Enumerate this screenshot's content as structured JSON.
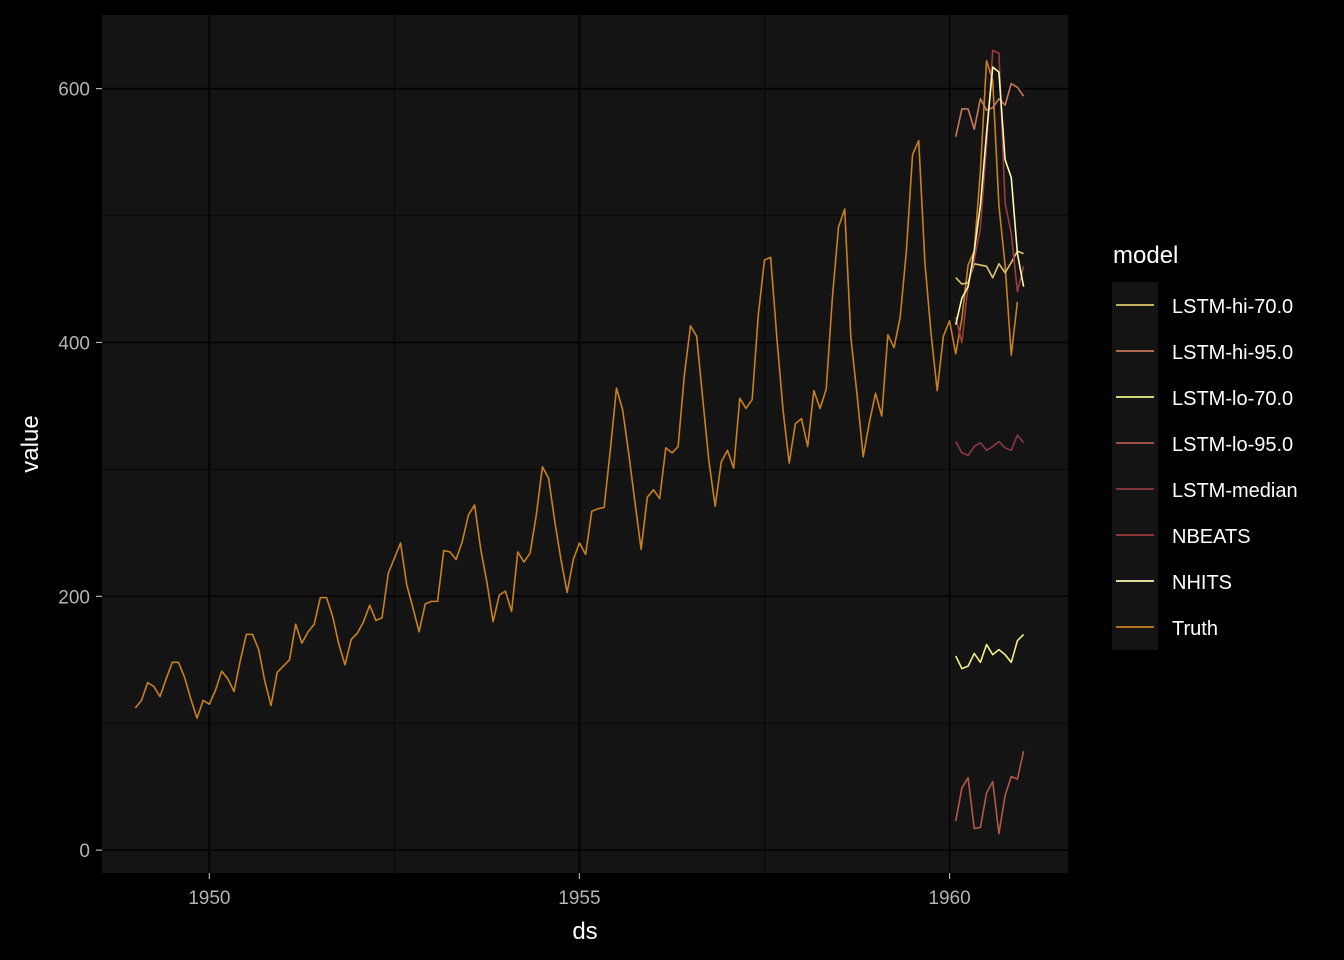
{
  "chart_data": {
    "type": "line",
    "xlabel": "ds",
    "ylabel": "value",
    "xlim": [
      1948.55,
      1961.6
    ],
    "ylim": [
      -18,
      658
    ],
    "x_ticks": [
      1950,
      1955,
      1960
    ],
    "x_tick_labels": [
      "1950",
      "1955",
      "1960"
    ],
    "y_ticks": [
      0,
      200,
      400,
      600
    ],
    "y_tick_labels": [
      "0",
      "200",
      "400",
      "600"
    ],
    "grid": true,
    "legend": {
      "title": "model",
      "placement": "right"
    },
    "series": [
      {
        "name": "LSTM-hi-70.0",
        "color": "#e0c46a",
        "x": [
          1960.0833,
          1960.1667,
          1960.25,
          1960.3333,
          1960.4167,
          1960.5,
          1960.5833,
          1960.6667,
          1960.75,
          1960.8333,
          1960.9167,
          1961.0
        ],
        "values": [
          451,
          446,
          447,
          462,
          461,
          460,
          451,
          462,
          455,
          463,
          472,
          470
        ]
      },
      {
        "name": "LSTM-hi-95.0",
        "color": "#c77a58",
        "x": [
          1960.0833,
          1960.1667,
          1960.25,
          1960.3333,
          1960.4167,
          1960.5,
          1960.5833,
          1960.6667,
          1960.75,
          1960.8333,
          1960.9167,
          1961.0
        ],
        "values": [
          562,
          584,
          584,
          568,
          592,
          583,
          585,
          592,
          587,
          604,
          601,
          594
        ]
      },
      {
        "name": "LSTM-lo-70.0",
        "color": "#f2f07e",
        "x": [
          1960.0833,
          1960.1667,
          1960.25,
          1960.3333,
          1960.4167,
          1960.5,
          1960.5833,
          1960.6667,
          1960.75,
          1960.8333,
          1960.9167,
          1961.0
        ],
        "values": [
          153,
          143,
          145,
          155,
          148,
          162,
          154,
          158,
          154,
          148,
          165,
          170
        ]
      },
      {
        "name": "LSTM-lo-95.0",
        "color": "#b35848",
        "x": [
          1960.0833,
          1960.1667,
          1960.25,
          1960.3333,
          1960.4167,
          1960.5,
          1960.5833,
          1960.6667,
          1960.75,
          1960.8333,
          1960.9167,
          1961.0
        ],
        "values": [
          23,
          49,
          57,
          17,
          18,
          45,
          54,
          13,
          43,
          58,
          56,
          78
        ]
      },
      {
        "name": "LSTM-median",
        "color": "#8c3845",
        "x": [
          1960.0833,
          1960.1667,
          1960.25,
          1960.3333,
          1960.4167,
          1960.5,
          1960.5833,
          1960.6667,
          1960.75,
          1960.8333,
          1960.9167,
          1961.0
        ],
        "values": [
          322,
          313,
          311,
          318,
          321,
          315,
          318,
          322,
          317,
          315,
          327,
          321
        ]
      },
      {
        "name": "NBEATS",
        "color": "#9c3c3a",
        "x": [
          1960.0833,
          1960.1667,
          1960.25,
          1960.3333,
          1960.4167,
          1960.5,
          1960.5833,
          1960.6667,
          1960.75,
          1960.8333,
          1960.9167,
          1961.0
        ],
        "values": [
          420,
          400,
          445,
          465,
          490,
          556,
          630,
          628,
          510,
          486,
          440,
          460
        ]
      },
      {
        "name": "NHITS",
        "color": "#fbf7b2",
        "x": [
          1960.0833,
          1960.1667,
          1960.25,
          1960.3333,
          1960.4167,
          1960.5,
          1960.5833,
          1960.6667,
          1960.75,
          1960.8333,
          1960.9167,
          1961.0
        ],
        "values": [
          414,
          435,
          444,
          472,
          508,
          565,
          617,
          613,
          544,
          530,
          470,
          444
        ]
      },
      {
        "name": "Truth",
        "color": "#c9801f",
        "start": 1949.0,
        "step": 0.083333,
        "values": [
          112,
          118,
          132,
          129,
          121,
          135,
          148,
          148,
          136,
          119,
          104,
          118,
          115,
          126,
          141,
          135,
          125,
          149,
          170,
          170,
          158,
          133,
          114,
          140,
          145,
          150,
          178,
          163,
          172,
          178,
          199,
          199,
          184,
          162,
          146,
          166,
          171,
          180,
          193,
          181,
          183,
          218,
          230,
          242,
          209,
          191,
          172,
          194,
          196,
          196,
          236,
          235,
          229,
          243,
          264,
          272,
          237,
          211,
          180,
          201,
          204,
          188,
          235,
          227,
          234,
          264,
          302,
          293,
          259,
          229,
          203,
          229,
          242,
          233,
          267,
          269,
          270,
          315,
          364,
          347,
          312,
          274,
          237,
          278,
          284,
          277,
          317,
          313,
          318,
          374,
          413,
          405,
          355,
          306,
          271,
          306,
          315,
          301,
          356,
          348,
          355,
          422,
          465,
          467,
          404,
          347,
          305,
          336,
          340,
          318,
          362,
          348,
          363,
          435,
          491,
          505,
          404,
          359,
          310,
          337,
          360,
          342,
          406,
          396,
          420,
          472,
          548,
          559,
          463,
          407,
          362,
          405,
          417,
          391,
          419,
          461,
          472,
          535,
          622,
          606,
          508,
          461,
          390,
          432
        ]
      }
    ]
  }
}
